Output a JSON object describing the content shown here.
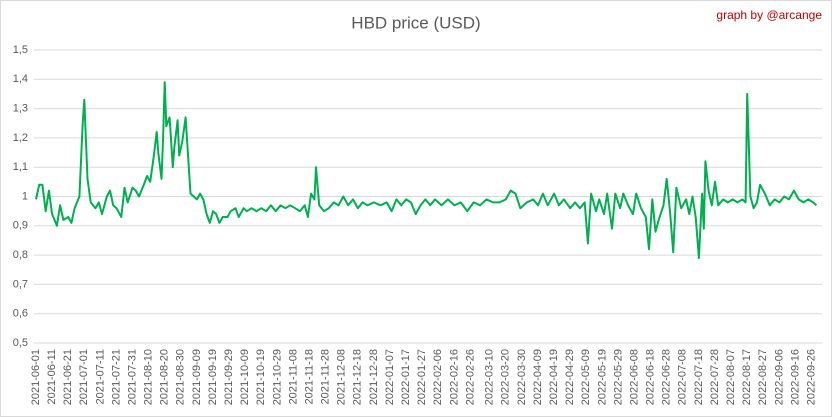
{
  "chart_data": {
    "type": "line",
    "title": "HBD price (USD)",
    "annotation": "graph by @arcange",
    "color": "#00b050",
    "grid": true,
    "x": [
      "2021-06-01",
      "2021-06-03",
      "2021-06-05",
      "2021-06-07",
      "2021-06-09",
      "2021-06-11",
      "2021-06-14",
      "2021-06-16",
      "2021-06-18",
      "2021-06-21",
      "2021-06-23",
      "2021-06-25",
      "2021-06-28",
      "2021-06-30",
      "2021-07-01",
      "2021-07-03",
      "2021-07-05",
      "2021-07-08",
      "2021-07-10",
      "2021-07-12",
      "2021-07-15",
      "2021-07-17",
      "2021-07-19",
      "2021-07-21",
      "2021-07-24",
      "2021-07-26",
      "2021-07-28",
      "2021-07-31",
      "2021-08-02",
      "2021-08-04",
      "2021-08-07",
      "2021-08-09",
      "2021-08-11",
      "2021-08-13",
      "2021-08-15",
      "2021-08-16",
      "2021-08-18",
      "2021-08-19",
      "2021-08-20",
      "2021-08-21",
      "2021-08-23",
      "2021-08-25",
      "2021-08-26",
      "2021-08-28",
      "2021-08-29",
      "2021-08-31",
      "2021-09-02",
      "2021-09-03",
      "2021-09-05",
      "2021-09-07",
      "2021-09-09",
      "2021-09-11",
      "2021-09-13",
      "2021-09-15",
      "2021-09-17",
      "2021-09-19",
      "2021-09-21",
      "2021-09-23",
      "2021-09-25",
      "2021-09-28",
      "2021-09-30",
      "2021-10-03",
      "2021-10-05",
      "2021-10-08",
      "2021-10-10",
      "2021-10-13",
      "2021-10-16",
      "2021-10-19",
      "2021-10-22",
      "2021-10-25",
      "2021-10-28",
      "2021-10-31",
      "2021-11-03",
      "2021-11-06",
      "2021-11-09",
      "2021-11-12",
      "2021-11-15",
      "2021-11-17",
      "2021-11-19",
      "2021-11-21",
      "2021-11-22",
      "2021-11-24",
      "2021-11-27",
      "2021-11-30",
      "2021-12-03",
      "2021-12-06",
      "2021-12-09",
      "2021-12-12",
      "2021-12-15",
      "2021-12-18",
      "2021-12-21",
      "2021-12-24",
      "2021-12-28",
      "2022-01-01",
      "2022-01-05",
      "2022-01-08",
      "2022-01-11",
      "2022-01-14",
      "2022-01-17",
      "2022-01-20",
      "2022-01-23",
      "2022-01-26",
      "2022-01-29",
      "2022-02-01",
      "2022-02-04",
      "2022-02-08",
      "2022-02-12",
      "2022-02-16",
      "2022-02-20",
      "2022-02-24",
      "2022-02-28",
      "2022-03-04",
      "2022-03-08",
      "2022-03-12",
      "2022-03-16",
      "2022-03-20",
      "2022-03-23",
      "2022-03-26",
      "2022-03-29",
      "2022-04-02",
      "2022-04-06",
      "2022-04-09",
      "2022-04-12",
      "2022-04-15",
      "2022-04-19",
      "2022-04-22",
      "2022-04-25",
      "2022-04-29",
      "2022-05-02",
      "2022-05-05",
      "2022-05-08",
      "2022-05-10",
      "2022-05-12",
      "2022-05-15",
      "2022-05-17",
      "2022-05-20",
      "2022-05-22",
      "2022-05-25",
      "2022-05-27",
      "2022-05-30",
      "2022-06-01",
      "2022-06-04",
      "2022-06-07",
      "2022-06-09",
      "2022-06-12",
      "2022-06-15",
      "2022-06-17",
      "2022-06-19",
      "2022-06-21",
      "2022-06-23",
      "2022-06-26",
      "2022-06-28",
      "2022-06-30",
      "2022-07-02",
      "2022-07-04",
      "2022-07-07",
      "2022-07-10",
      "2022-07-12",
      "2022-07-14",
      "2022-07-16",
      "2022-07-18",
      "2022-07-20",
      "2022-07-21",
      "2022-07-22",
      "2022-07-24",
      "2022-07-26",
      "2022-07-28",
      "2022-07-30",
      "2022-08-02",
      "2022-08-05",
      "2022-08-08",
      "2022-08-11",
      "2022-08-14",
      "2022-08-16",
      "2022-08-17",
      "2022-08-19",
      "2022-08-21",
      "2022-08-23",
      "2022-08-25",
      "2022-08-28",
      "2022-08-31",
      "2022-09-03",
      "2022-09-06",
      "2022-09-09",
      "2022-09-12",
      "2022-09-15",
      "2022-09-18",
      "2022-09-21",
      "2022-09-24",
      "2022-09-27",
      "2022-09-29"
    ],
    "values": [
      0.99,
      1.04,
      1.04,
      0.95,
      1.02,
      0.94,
      0.9,
      0.97,
      0.92,
      0.93,
      0.91,
      0.96,
      1.0,
      1.25,
      1.33,
      1.06,
      0.98,
      0.96,
      0.98,
      0.94,
      1.0,
      1.02,
      0.97,
      0.96,
      0.93,
      1.03,
      0.98,
      1.03,
      1.02,
      1.0,
      1.04,
      1.07,
      1.05,
      1.13,
      1.22,
      1.15,
      1.06,
      1.2,
      1.39,
      1.24,
      1.27,
      1.1,
      1.17,
      1.26,
      1.14,
      1.19,
      1.27,
      1.18,
      1.01,
      1.0,
      0.99,
      1.01,
      0.99,
      0.94,
      0.91,
      0.95,
      0.94,
      0.91,
      0.93,
      0.93,
      0.95,
      0.96,
      0.93,
      0.96,
      0.95,
      0.96,
      0.95,
      0.96,
      0.95,
      0.97,
      0.95,
      0.97,
      0.96,
      0.97,
      0.96,
      0.95,
      0.97,
      0.93,
      1.01,
      0.99,
      1.1,
      0.97,
      0.95,
      0.96,
      0.98,
      0.97,
      1.0,
      0.97,
      0.99,
      0.96,
      0.98,
      0.97,
      0.98,
      0.97,
      0.98,
      0.95,
      0.99,
      0.97,
      0.99,
      0.98,
      0.94,
      0.97,
      0.99,
      0.97,
      0.99,
      0.97,
      0.99,
      0.97,
      0.98,
      0.95,
      0.98,
      0.97,
      0.99,
      0.98,
      0.98,
      0.99,
      1.02,
      1.01,
      0.96,
      0.98,
      0.99,
      0.97,
      1.01,
      0.97,
      1.01,
      0.97,
      0.99,
      0.96,
      0.98,
      0.96,
      0.98,
      0.84,
      1.01,
      0.95,
      0.99,
      0.94,
      1.01,
      0.89,
      1.01,
      0.96,
      1.01,
      0.97,
      0.94,
      1.01,
      0.96,
      0.93,
      0.82,
      0.99,
      0.88,
      0.92,
      0.97,
      1.06,
      0.95,
      0.81,
      1.03,
      0.96,
      0.99,
      0.94,
      1.0,
      0.93,
      0.79,
      1.01,
      0.89,
      1.12,
      1.02,
      0.97,
      1.05,
      0.97,
      0.99,
      0.98,
      0.99,
      0.98,
      0.99,
      0.98,
      1.35,
      1.0,
      0.96,
      0.98,
      1.04,
      1.01,
      0.97,
      0.99,
      0.98,
      1.0,
      0.99,
      1.02,
      0.99,
      0.98,
      0.99,
      0.98,
      0.97
    ],
    "xlim": [
      "2021-06-01",
      "2022-09-30"
    ],
    "xticks": [
      "2021-06-01",
      "2021-06-11",
      "2021-06-21",
      "2021-07-01",
      "2021-07-11",
      "2021-07-21",
      "2021-07-31",
      "2021-08-10",
      "2021-08-20",
      "2021-08-30",
      "2021-09-09",
      "2021-09-19",
      "2021-09-29",
      "2021-10-09",
      "2021-10-19",
      "2021-10-29",
      "2021-11-08",
      "2021-11-18",
      "2021-11-28",
      "2021-12-08",
      "2021-12-18",
      "2021-12-28",
      "2022-01-07",
      "2022-01-17",
      "2022-01-27",
      "2022-02-06",
      "2022-02-16",
      "2022-02-26",
      "2022-03-10",
      "2022-03-20",
      "2022-03-30",
      "2022-04-09",
      "2022-04-19",
      "2022-04-29",
      "2022-05-09",
      "2022-05-19",
      "2022-05-29",
      "2022-06-08",
      "2022-06-18",
      "2022-06-28",
      "2022-07-08",
      "2022-07-18",
      "2022-07-28",
      "2022-08-07",
      "2022-08-17",
      "2022-08-27",
      "2022-09-06",
      "2022-09-16",
      "2022-09-26"
    ],
    "ylim": [
      0.5,
      1.5
    ],
    "yticks": [
      {
        "value": 0.5,
        "label": "0,5"
      },
      {
        "value": 0.6,
        "label": "0,6"
      },
      {
        "value": 0.7,
        "label": "0,7"
      },
      {
        "value": 0.8,
        "label": "0,8"
      },
      {
        "value": 0.9,
        "label": "0,9"
      },
      1,
      {
        "value": 1.1,
        "label": "1,1"
      },
      {
        "value": 1.2,
        "label": "1,2"
      },
      {
        "value": 1.3,
        "label": "1,3"
      },
      {
        "value": 1.4,
        "label": "1,4"
      },
      {
        "value": 1.5,
        "label": "1,5"
      }
    ]
  }
}
